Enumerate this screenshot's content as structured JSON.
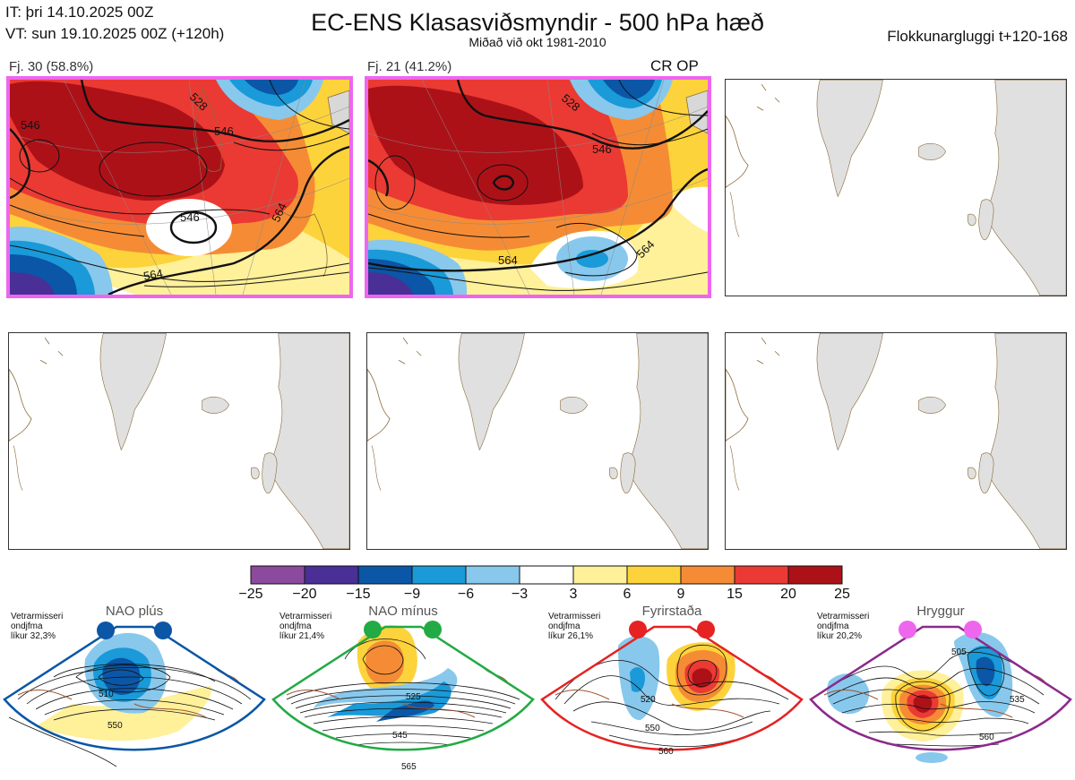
{
  "header": {
    "it": "IT: þri 14.10.2025 00Z",
    "vt": "VT: sun 19.10.2025 00Z  (+120h)",
    "title": "EC-ENS Klasasviðsmyndir - 500 hPa hæð",
    "subtitle": "Miðað við okt 1981-2010",
    "window": "Flokkunargluggi t+120-168"
  },
  "panels": [
    {
      "label": "Fj. 30 (58.8%)",
      "highlight": true,
      "crop": "",
      "contours": [
        "546",
        "546",
        "546",
        "564",
        "564",
        "528"
      ]
    },
    {
      "label": "Fj. 21 (41.2%)",
      "highlight": true,
      "crop": "CR OP",
      "contours": [
        "528",
        "546",
        "564",
        "564"
      ]
    },
    {
      "label": "",
      "highlight": false
    },
    {
      "label": "",
      "highlight": false
    },
    {
      "label": "",
      "highlight": false
    },
    {
      "label": "",
      "highlight": false
    }
  ],
  "colorbar": {
    "ticks": [
      "−25",
      "−20",
      "−15",
      "−9",
      "−6",
      "−3",
      "3",
      "6",
      "9",
      "15",
      "20",
      "25"
    ],
    "colors": [
      "#8b4a9c",
      "#4a2f96",
      "#0b56a6",
      "#1a9ad8",
      "#88c8ec",
      "#ffffff",
      "#fff09a",
      "#fdd33c",
      "#f58c35",
      "#ea3a33",
      "#ad1118"
    ]
  },
  "regimes": [
    {
      "title": "NAO plús",
      "note": "Vetrarmisseri\nondjfma\nlíkur 32,3%",
      "border": "#0b56a6",
      "dots": "#0b56a6",
      "labels": [
        "510",
        "550"
      ]
    },
    {
      "title": "NAO mínus",
      "note": "Vetrarmisseri\nondjfma\nlíkur 21,4%",
      "border": "#22aa44",
      "dots": "#22aa44",
      "labels": [
        "525",
        "545",
        "565"
      ]
    },
    {
      "title": "Fyrirstaða",
      "note": "Vetrarmisseri\nondjfma\nlíkur 26,1%",
      "border": "#e62222",
      "dots": "#e62222",
      "labels": [
        "520",
        "550",
        "560"
      ]
    },
    {
      "title": "Hryggur",
      "note": "Vetrarmisseri\nondjfma\nlíkur 20,2%",
      "border": "#8b2a8b",
      "dots": "#ee66ee",
      "labels": [
        "505",
        "535",
        "560"
      ]
    }
  ]
}
